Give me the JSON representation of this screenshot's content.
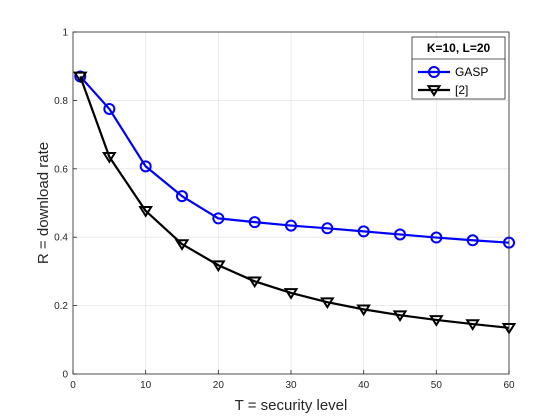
{
  "chart_data": {
    "type": "line",
    "xlabel": "T = security level",
    "ylabel": "R = download rate",
    "xlim": [
      0,
      60
    ],
    "ylim": [
      0,
      1
    ],
    "xticks": [
      "0",
      "10",
      "20",
      "30",
      "40",
      "50",
      "60"
    ],
    "yticks": [
      "0",
      "0.2",
      "0.4",
      "0.6",
      "0.8",
      "1"
    ],
    "grid": true,
    "legend_title": "K=10, L=20",
    "legend_position": "top-right",
    "x": [
      1,
      5,
      10,
      15,
      20,
      25,
      30,
      35,
      40,
      45,
      50,
      55,
      60
    ],
    "series": [
      {
        "name": "GASP",
        "color": "#0000ff",
        "marker": "circle",
        "values": [
          0.87,
          0.775,
          0.607,
          0.52,
          0.455,
          0.444,
          0.434,
          0.426,
          0.417,
          0.408,
          0.399,
          0.391,
          0.384
        ]
      },
      {
        "name": "[2]",
        "color": "#000000",
        "marker": "triangle-down",
        "values": [
          0.87,
          0.635,
          0.477,
          0.38,
          0.318,
          0.271,
          0.237,
          0.21,
          0.189,
          0.172,
          0.158,
          0.146,
          0.135
        ]
      }
    ]
  }
}
